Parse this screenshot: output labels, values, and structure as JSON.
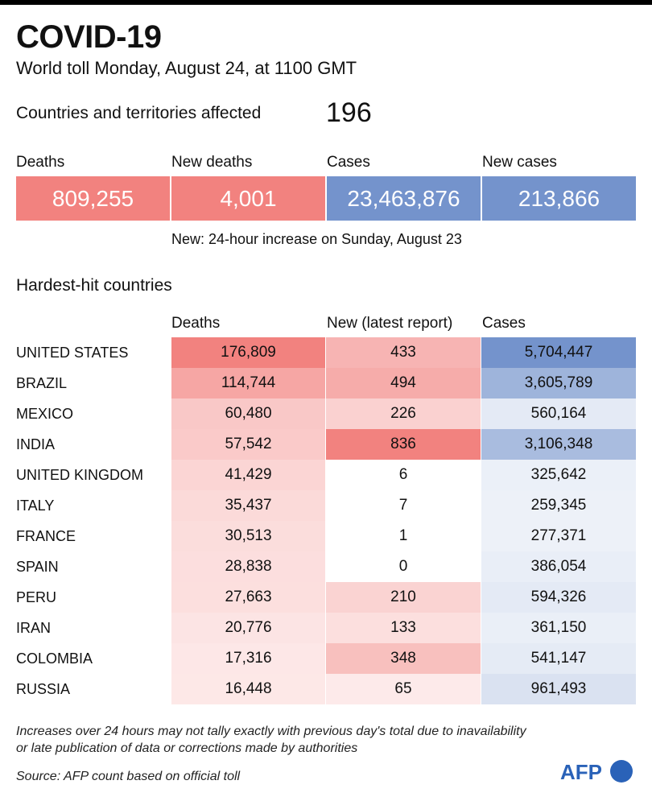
{
  "header": {
    "title": "COVID-19",
    "subtitle": "World toll Monday, August 24, at 1100 GMT",
    "countries_label": "Countries and territories affected",
    "countries_value": "196"
  },
  "summary": {
    "items": [
      {
        "label": "Deaths",
        "value": "809,255",
        "color": "#f2827f"
      },
      {
        "label": "New deaths",
        "value": "4,001",
        "color": "#f2827f"
      },
      {
        "label": "Cases",
        "value": "23,463,876",
        "color": "#7493cc"
      },
      {
        "label": "New cases",
        "value": "213,866",
        "color": "#7493cc"
      }
    ],
    "note": "New: 24-hour increase on Sunday, August 23"
  },
  "hardest_hit": {
    "title": "Hardest-hit countries",
    "columns": [
      "Deaths",
      "New (latest report)",
      "Cases"
    ]
  },
  "chart_data": {
    "type": "heatmap",
    "title": "Hardest-hit countries",
    "columns": [
      "Deaths",
      "New (latest report)",
      "Cases"
    ],
    "rows": [
      {
        "country": "UNITED STATES",
        "deaths": "176,809",
        "new": "433",
        "cases": "5,704,447",
        "d": 176809,
        "n": 433,
        "c": 5704447
      },
      {
        "country": "BRAZIL",
        "deaths": "114,744",
        "new": "494",
        "cases": "3,605,789",
        "d": 114744,
        "n": 494,
        "c": 3605789
      },
      {
        "country": "MEXICO",
        "deaths": "60,480",
        "new": "226",
        "cases": "560,164",
        "d": 60480,
        "n": 226,
        "c": 560164
      },
      {
        "country": "INDIA",
        "deaths": "57,542",
        "new": "836",
        "cases": "3,106,348",
        "d": 57542,
        "n": 836,
        "c": 3106348
      },
      {
        "country": "UNITED KINGDOM",
        "deaths": "41,429",
        "new": "6",
        "cases": "325,642",
        "d": 41429,
        "n": 6,
        "c": 325642
      },
      {
        "country": "ITALY",
        "deaths": "35,437",
        "new": "7",
        "cases": "259,345",
        "d": 35437,
        "n": 7,
        "c": 259345
      },
      {
        "country": "FRANCE",
        "deaths": "30,513",
        "new": "1",
        "cases": "277,371",
        "d": 30513,
        "n": 1,
        "c": 277371
      },
      {
        "country": "SPAIN",
        "deaths": "28,838",
        "new": "0",
        "cases": "386,054",
        "d": 28838,
        "n": 0,
        "c": 386054
      },
      {
        "country": "PERU",
        "deaths": "27,663",
        "new": "210",
        "cases": "594,326",
        "d": 27663,
        "n": 210,
        "c": 594326
      },
      {
        "country": "IRAN",
        "deaths": "20,776",
        "new": "133",
        "cases": "361,150",
        "d": 20776,
        "n": 133,
        "c": 361150
      },
      {
        "country": "COLOMBIA",
        "deaths": "17,316",
        "new": "348",
        "cases": "541,147",
        "d": 17316,
        "n": 348,
        "c": 541147
      },
      {
        "country": "RUSSIA",
        "deaths": "16,448",
        "new": "65",
        "cases": "961,493",
        "d": 16448,
        "n": 65,
        "c": 961493
      }
    ],
    "red_color": "#f2827f",
    "blue_color": "#7493cc"
  },
  "footer": {
    "note_line1": "Increases over 24 hours may not tally exactly with previous day's total due to inavailability",
    "note_line2": "or late publication of data or corrections made by authorities",
    "source": "Source: AFP count based on official toll",
    "logo_text": "AFP"
  }
}
